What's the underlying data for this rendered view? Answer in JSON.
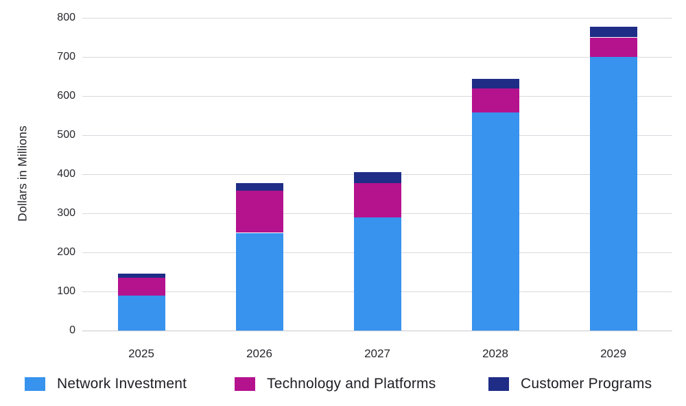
{
  "chart_data": {
    "type": "bar",
    "stacked": true,
    "title": "",
    "xlabel": "",
    "ylabel": "Dollars in Millions",
    "categories": [
      "2025",
      "2026",
      "2027",
      "2028",
      "2029"
    ],
    "series": [
      {
        "name": "Network Investment",
        "color": "#3793ee",
        "values": [
          90,
          250,
          290,
          558,
          700
        ]
      },
      {
        "name": "Technology and Platforms",
        "color": "#b5128e",
        "values": [
          45,
          108,
          88,
          62,
          50
        ]
      },
      {
        "name": "Customer Programs",
        "color": "#1f2d87",
        "values": [
          10,
          20,
          28,
          23,
          28
        ]
      }
    ],
    "totals": [
      145,
      378,
      406,
      643,
      778
    ],
    "ylim": [
      0,
      800
    ],
    "ytick_step": 100,
    "yticks": [
      0,
      100,
      200,
      300,
      400,
      500,
      600,
      700,
      800
    ],
    "grid": "horizontal",
    "legend_position": "bottom"
  },
  "colors": {
    "background": "#ffffff",
    "gridline": "#d9d9de",
    "axis_text": "#26262c",
    "legend_text": "#1d1d24"
  }
}
